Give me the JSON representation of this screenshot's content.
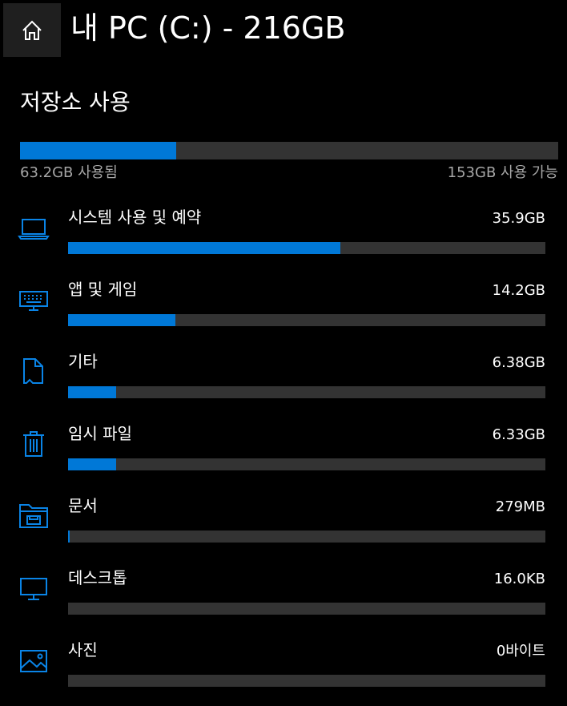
{
  "header": {
    "title": "내 PC (C:) - 216GB",
    "home_icon": "home-icon"
  },
  "storage": {
    "section_title": "저장소 사용",
    "used_label": "63.2GB 사용됨",
    "free_label": "153GB 사용 가능",
    "used_fraction": 0.29
  },
  "categories": [
    {
      "name": "시스템 사용 및 예약",
      "size": "35.9GB",
      "fraction": 0.57,
      "icon": "laptop-icon"
    },
    {
      "name": "앱 및 게임",
      "size": "14.2GB",
      "fraction": 0.225,
      "icon": "keyboard-icon"
    },
    {
      "name": "기타",
      "size": "6.38GB",
      "fraction": 0.1,
      "icon": "file-icon"
    },
    {
      "name": "임시 파일",
      "size": "6.33GB",
      "fraction": 0.1,
      "icon": "trash-icon"
    },
    {
      "name": "문서",
      "size": "279MB",
      "fraction": 0.004,
      "icon": "documents-folder-icon"
    },
    {
      "name": "데스크톱",
      "size": "16.0KB",
      "fraction": 0,
      "icon": "monitor-icon"
    },
    {
      "name": "사진",
      "size": "0바이트",
      "fraction": 0,
      "icon": "image-icon"
    }
  ],
  "colors": {
    "accent": "#0078d7",
    "bar_background": "#333333",
    "background": "#000000",
    "secondary_text": "#a6a6a6"
  }
}
